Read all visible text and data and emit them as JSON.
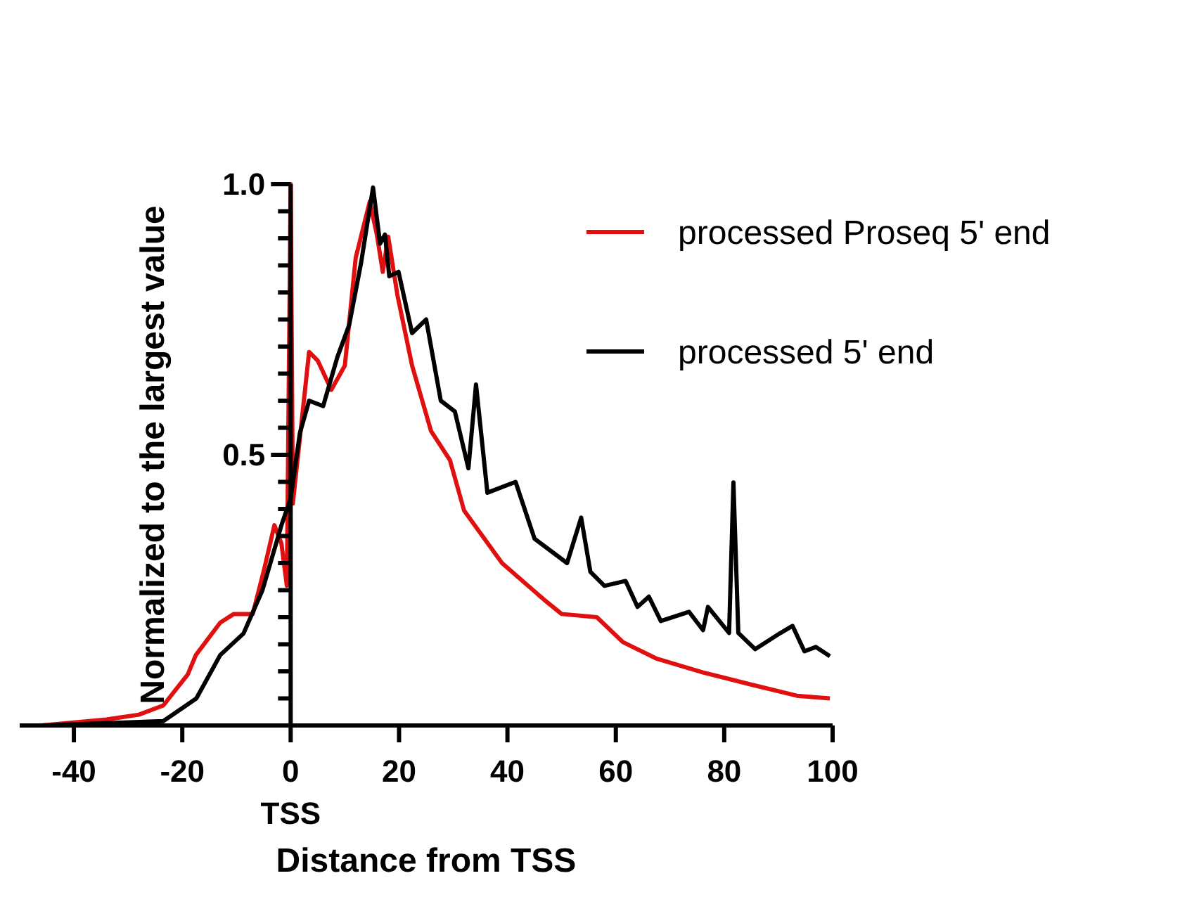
{
  "chart_data": {
    "type": "line",
    "xlabel": "Distance from TSS",
    "ylabel": "Normalized to the largest value",
    "annotations": [
      "TSS"
    ],
    "xlim": [
      -50,
      100
    ],
    "xticks": [
      -40,
      -20,
      0,
      20,
      40,
      60,
      80,
      100
    ],
    "ylim": [
      0,
      1
    ],
    "yticks": [
      {
        "value": 0,
        "label": null
      },
      {
        "value": 0.05,
        "label": null
      },
      {
        "value": 0.1,
        "label": null
      },
      {
        "value": 0.15,
        "label": null
      },
      {
        "value": 0.2,
        "label": null
      },
      {
        "value": 0.25,
        "label": null
      },
      {
        "value": 0.3,
        "label": null
      },
      {
        "value": 0.35,
        "label": null
      },
      {
        "value": 0.4,
        "label": null
      },
      {
        "value": 0.45,
        "label": null
      },
      {
        "value": 0.5,
        "label": "0.5"
      },
      {
        "value": 0.55,
        "label": null
      },
      {
        "value": 0.6,
        "label": null
      },
      {
        "value": 0.65,
        "label": null
      },
      {
        "value": 0.7,
        "label": null
      },
      {
        "value": 0.75,
        "label": null
      },
      {
        "value": 0.8,
        "label": null
      },
      {
        "value": 0.85,
        "label": null
      },
      {
        "value": 0.9,
        "label": null
      },
      {
        "value": 0.95,
        "label": null
      },
      {
        "value": 1,
        "label": "1.0"
      }
    ],
    "legend": "top right",
    "grid": false,
    "marker": "none",
    "line_style": "solid",
    "series": [
      {
        "name": "processed Proseq 5' end",
        "color": "#e01010",
        "x": [
          -46,
          -34,
          -28,
          -23.5,
          -19,
          -17.5,
          -13,
          -10.5,
          -7,
          -5,
          -3,
          -1.7,
          -0.7,
          0,
          0.4,
          3.4,
          5,
          7.5,
          10,
          12,
          14.6,
          15.9,
          17,
          18,
          19.7,
          22.4,
          25.9,
          29.4,
          32,
          39,
          46.8,
          50,
          56.5,
          61.3,
          67.4,
          76.1,
          84.8,
          93.4,
          99.5
        ],
        "values": [
          0,
          0.011,
          0.02,
          0.037,
          0.094,
          0.13,
          0.19,
          0.206,
          0.206,
          0.284,
          0.37,
          0.336,
          0.258,
          1,
          0.41,
          0.69,
          0.674,
          0.62,
          0.665,
          0.864,
          0.968,
          0.907,
          0.838,
          0.903,
          0.795,
          0.665,
          0.544,
          0.49,
          0.397,
          0.3,
          0.232,
          0.206,
          0.2,
          0.154,
          0.124,
          0.098,
          0.076,
          0.055,
          0.05
        ]
      },
      {
        "name": "processed 5' end",
        "color": "#000000",
        "x": [
          -46,
          -23.5,
          -17.4,
          -13,
          -8.7,
          -5.2,
          -1.7,
          0,
          1.7,
          3.4,
          6,
          8.6,
          10.8,
          13,
          15.2,
          16.5,
          17.4,
          18.2,
          19.9,
          22.4,
          25,
          27.7,
          30.3,
          32.8,
          34.2,
          36.3,
          41.5,
          45,
          51,
          53.6,
          55.3,
          57.9,
          61.8,
          64,
          66.1,
          68.3,
          73.5,
          76.1,
          77,
          80.9,
          81.7,
          82.6,
          85.7,
          90.4,
          92.6,
          94.8,
          96.9,
          99.5
        ],
        "values": [
          0,
          0.008,
          0.05,
          0.13,
          0.17,
          0.25,
          0.37,
          0.42,
          0.54,
          0.6,
          0.59,
          0.68,
          0.74,
          0.855,
          0.994,
          0.89,
          0.907,
          0.83,
          0.838,
          0.725,
          0.75,
          0.6,
          0.58,
          0.475,
          0.63,
          0.43,
          0.45,
          0.345,
          0.3,
          0.384,
          0.284,
          0.258,
          0.267,
          0.219,
          0.238,
          0.193,
          0.21,
          0.176,
          0.219,
          0.171,
          0.449,
          0.171,
          0.141,
          0.171,
          0.184,
          0.137,
          0.145,
          0.128
        ]
      }
    ]
  }
}
